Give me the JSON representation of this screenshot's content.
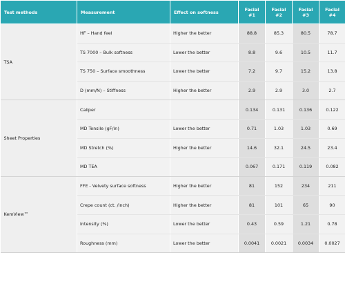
{
  "table": {
    "headers": [
      "Test methods",
      "Measurement",
      "Effect on softness",
      "Facial\n#1",
      "Facial\n#2",
      "Facial\n#3",
      "Facial\n#4"
    ],
    "header_lines": [
      [
        "Facial",
        "#1"
      ],
      [
        "Facial",
        "#2"
      ],
      [
        "Facial",
        "#3"
      ],
      [
        "Facial",
        "#4"
      ]
    ],
    "groups": [
      {
        "name": "TSA",
        "rows": [
          {
            "measurement": "HF – Hand feel",
            "effect": "Higher the better",
            "values": [
              "88.8",
              "85.3",
              "80.5",
              "78.7"
            ]
          },
          {
            "measurement": "TS 7000 – Bulk softness",
            "effect": "Lower the better",
            "values": [
              "8.8",
              "9.6",
              "10.5",
              "11.7"
            ]
          },
          {
            "measurement": "TS 750 – Surface smoothness",
            "effect": "Lower the better",
            "values": [
              "7.2",
              "9.7",
              "15.2",
              "13.8"
            ]
          },
          {
            "measurement": "D (mm/N) – Stiffness",
            "effect": "Higher the better",
            "values": [
              "2.9",
              "2.9",
              "3.0",
              "2.7"
            ]
          }
        ]
      },
      {
        "name": "Sheet Properties",
        "rows": [
          {
            "measurement": "Caliper",
            "effect": "",
            "values": [
              "0.134",
              "0.131",
              "0.136",
              "0.122"
            ]
          },
          {
            "measurement": "MD Tensile (gF/in)",
            "effect": "Lower the better",
            "values": [
              "0.71",
              "1.03",
              "1.03",
              "0.69"
            ]
          },
          {
            "measurement": "MD Stretch (%)",
            "effect": "Higher the better",
            "values": [
              "14.6",
              "32.1",
              "24.5",
              "23.4"
            ]
          },
          {
            "measurement": "MD TEA",
            "effect": "",
            "values": [
              "0.067",
              "0.171",
              "0.119",
              "0.082"
            ]
          }
        ]
      },
      {
        "name": "KemView™",
        "rows": [
          {
            "measurement": "FFE - Velvety surface softness",
            "effect": "Higher the better",
            "values": [
              "81",
              "152",
              "234",
              "211"
            ]
          },
          {
            "measurement": "Crepe count (ct. /inch)",
            "effect": "Higher the better",
            "values": [
              "81",
              "101",
              "65",
              "90"
            ]
          },
          {
            "measurement": "Intensity (%)",
            "effect": "Lower the better",
            "values": [
              "0.43",
              "0.59",
              "1.21",
              "0.78"
            ]
          },
          {
            "measurement": "Roughness (mm)",
            "effect": "Lower the better",
            "values": [
              "0.0041",
              "0.0021",
              "0.0034",
              "0.0027"
            ]
          }
        ]
      }
    ]
  }
}
